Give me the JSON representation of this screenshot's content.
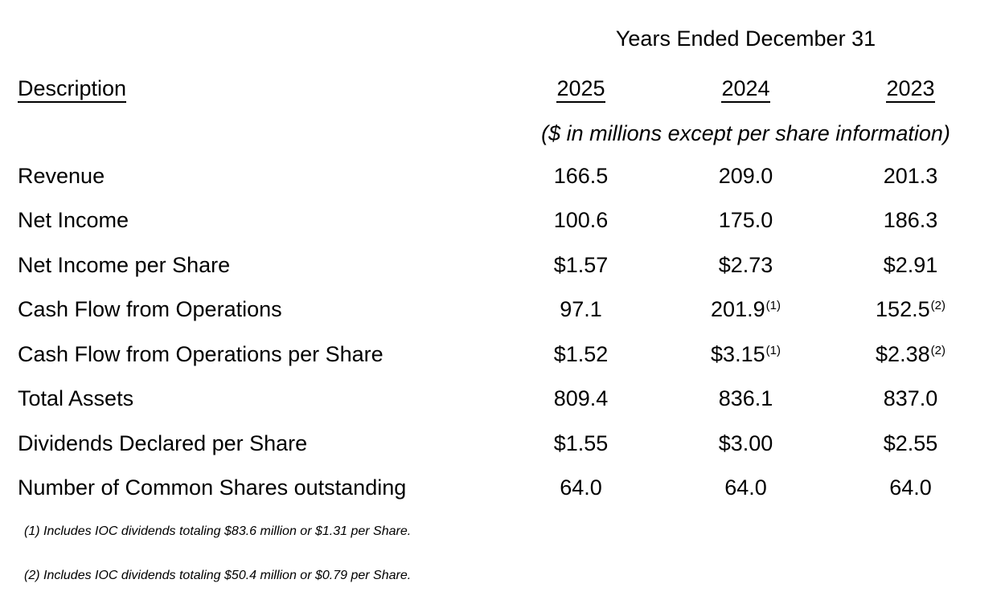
{
  "colors": {
    "text": "#000000",
    "background": "#ffffff"
  },
  "table": {
    "title": "Years Ended December 31",
    "description_header": "Description",
    "years": [
      "2025",
      "2024",
      "2023"
    ],
    "units_note": "($ in millions except per share information)",
    "rows": [
      {
        "label": "Revenue",
        "values": [
          {
            "text": "166.5"
          },
          {
            "text": "209.0"
          },
          {
            "text": "201.3"
          }
        ]
      },
      {
        "label": "Net Income",
        "values": [
          {
            "text": "100.6"
          },
          {
            "text": "175.0"
          },
          {
            "text": "186.3"
          }
        ]
      },
      {
        "label": "Net Income per Share",
        "values": [
          {
            "text": "$1.57"
          },
          {
            "text": "$2.73"
          },
          {
            "text": "$2.91"
          }
        ]
      },
      {
        "label": "Cash Flow from Operations",
        "values": [
          {
            "text": "97.1"
          },
          {
            "text": "201.9",
            "sup": "(1)"
          },
          {
            "text": "152.5",
            "sup": "(2)"
          }
        ]
      },
      {
        "label": "Cash Flow from Operations per Share",
        "values": [
          {
            "text": "$1.52"
          },
          {
            "text": "$3.15",
            "sup": "(1)"
          },
          {
            "text": "$2.38",
            "sup": "(2)"
          }
        ]
      },
      {
        "label": "Total Assets",
        "values": [
          {
            "text": "809.4"
          },
          {
            "text": "836.1"
          },
          {
            "text": "837.0"
          }
        ]
      },
      {
        "label": "Dividends Declared per Share",
        "values": [
          {
            "text": "$1.55"
          },
          {
            "text": "$3.00"
          },
          {
            "text": "$2.55"
          }
        ]
      },
      {
        "label": "Number of Common Shares outstanding",
        "values": [
          {
            "text": "64.0"
          },
          {
            "text": "64.0"
          },
          {
            "text": "64.0"
          }
        ]
      }
    ],
    "footnotes": [
      "(1) Includes IOC dividends totaling $83.6 million or $1.31 per Share.",
      "(2) Includes IOC dividends totaling $50.4 million or $0.79 per Share."
    ]
  }
}
